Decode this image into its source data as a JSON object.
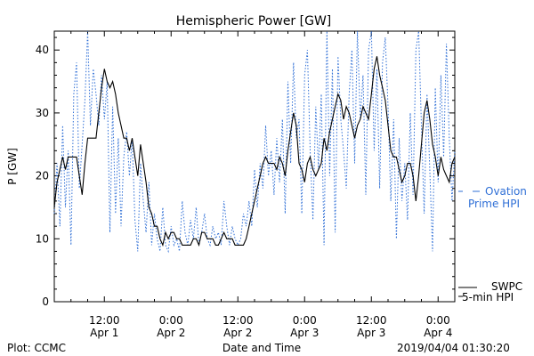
{
  "chart_data": {
    "type": "line",
    "title": "Hemispheric Power [GW]",
    "xlabel": "Date and Time",
    "ylabel": "P [GW]",
    "ylim": [
      0,
      43
    ],
    "yticks": [
      0,
      10,
      20,
      30,
      40
    ],
    "xticks": [
      {
        "time": "12:00",
        "date": "Apr 1",
        "hour": 12
      },
      {
        "time": "0:00",
        "date": "Apr 2",
        "hour": 24
      },
      {
        "time": "12:00",
        "date": "Apr 2",
        "hour": 36
      },
      {
        "time": "0:00",
        "date": "Apr 3",
        "hour": 48
      },
      {
        "time": "12:00",
        "date": "Apr 3",
        "hour": 60
      },
      {
        "time": "0:00",
        "date": "Apr 4",
        "hour": 72
      }
    ],
    "xlim_hours": [
      3,
      75
    ],
    "footer_left": "Plot: CCMC",
    "footer_right": "2019/04/04 01:30:20",
    "series": [
      {
        "name_lines": [
          "SWPC",
          "5-min HPI"
        ],
        "color": "#000000",
        "style": "solid",
        "points": [
          [
            3.0,
            15
          ],
          [
            3.5,
            19
          ],
          [
            4.0,
            21
          ],
          [
            4.5,
            23
          ],
          [
            5.0,
            21
          ],
          [
            5.5,
            23
          ],
          [
            6.0,
            23
          ],
          [
            6.5,
            23
          ],
          [
            7.0,
            23
          ],
          [
            7.5,
            20
          ],
          [
            8.0,
            17
          ],
          [
            8.5,
            22
          ],
          [
            9.0,
            26
          ],
          [
            9.5,
            26
          ],
          [
            10.0,
            26
          ],
          [
            10.5,
            26
          ],
          [
            11.0,
            30
          ],
          [
            11.5,
            34
          ],
          [
            12.0,
            37
          ],
          [
            12.5,
            35
          ],
          [
            13.0,
            34
          ],
          [
            13.5,
            35
          ],
          [
            14.0,
            33
          ],
          [
            14.5,
            30
          ],
          [
            15.0,
            28
          ],
          [
            15.5,
            26
          ],
          [
            16.0,
            26
          ],
          [
            16.5,
            24
          ],
          [
            17.0,
            26
          ],
          [
            17.5,
            23
          ],
          [
            18.0,
            20
          ],
          [
            18.5,
            25
          ],
          [
            19.0,
            22
          ],
          [
            19.5,
            19
          ],
          [
            20.0,
            15
          ],
          [
            20.5,
            14
          ],
          [
            21.0,
            12
          ],
          [
            21.5,
            12
          ],
          [
            22.0,
            10
          ],
          [
            22.5,
            9
          ],
          [
            23.0,
            11
          ],
          [
            23.5,
            10
          ],
          [
            24.0,
            11
          ],
          [
            24.5,
            11
          ],
          [
            25.0,
            10
          ],
          [
            25.5,
            10
          ],
          [
            26.0,
            9
          ],
          [
            26.5,
            9
          ],
          [
            27.0,
            9
          ],
          [
            27.5,
            9
          ],
          [
            28.0,
            10
          ],
          [
            28.5,
            10
          ],
          [
            29.0,
            9
          ],
          [
            29.5,
            11
          ],
          [
            30.0,
            11
          ],
          [
            30.5,
            10
          ],
          [
            31.0,
            10
          ],
          [
            31.5,
            10
          ],
          [
            32.0,
            9
          ],
          [
            32.5,
            9
          ],
          [
            33.0,
            10
          ],
          [
            33.5,
            11
          ],
          [
            34.0,
            10
          ],
          [
            34.5,
            10
          ],
          [
            35.0,
            10
          ],
          [
            35.5,
            9
          ],
          [
            36.0,
            9
          ],
          [
            36.5,
            9
          ],
          [
            37.0,
            9
          ],
          [
            37.5,
            10
          ],
          [
            38.0,
            12
          ],
          [
            38.5,
            14
          ],
          [
            39.0,
            16
          ],
          [
            39.5,
            18
          ],
          [
            40.0,
            20
          ],
          [
            40.5,
            22
          ],
          [
            41.0,
            23
          ],
          [
            41.5,
            22
          ],
          [
            42.0,
            22
          ],
          [
            42.5,
            22
          ],
          [
            43.0,
            21
          ],
          [
            43.5,
            23
          ],
          [
            44.0,
            22
          ],
          [
            44.5,
            20
          ],
          [
            45.0,
            24
          ],
          [
            45.5,
            27
          ],
          [
            46.0,
            30
          ],
          [
            46.5,
            28
          ],
          [
            47.0,
            22
          ],
          [
            47.5,
            21
          ],
          [
            48.0,
            19
          ],
          [
            48.5,
            22
          ],
          [
            49.0,
            23
          ],
          [
            49.5,
            21
          ],
          [
            50.0,
            20
          ],
          [
            50.5,
            21
          ],
          [
            51.0,
            22
          ],
          [
            51.5,
            26
          ],
          [
            52.0,
            24
          ],
          [
            52.5,
            27
          ],
          [
            53.0,
            29
          ],
          [
            53.5,
            31
          ],
          [
            54.0,
            33
          ],
          [
            54.5,
            32
          ],
          [
            55.0,
            29
          ],
          [
            55.5,
            31
          ],
          [
            56.0,
            30
          ],
          [
            56.5,
            28
          ],
          [
            57.0,
            26
          ],
          [
            57.5,
            28
          ],
          [
            58.0,
            29
          ],
          [
            58.5,
            31
          ],
          [
            59.0,
            30
          ],
          [
            59.5,
            29
          ],
          [
            60.0,
            33
          ],
          [
            60.5,
            37
          ],
          [
            61.0,
            39
          ],
          [
            61.5,
            36
          ],
          [
            62.0,
            34
          ],
          [
            62.5,
            32
          ],
          [
            63.0,
            28
          ],
          [
            63.5,
            24
          ],
          [
            64.0,
            23
          ],
          [
            64.5,
            23
          ],
          [
            65.0,
            21
          ],
          [
            65.5,
            19
          ],
          [
            66.0,
            20
          ],
          [
            66.5,
            22
          ],
          [
            67.0,
            22
          ],
          [
            67.5,
            20
          ],
          [
            68.0,
            16
          ],
          [
            68.5,
            20
          ],
          [
            69.0,
            25
          ],
          [
            69.5,
            30
          ],
          [
            70.0,
            32
          ],
          [
            70.5,
            29
          ],
          [
            71.0,
            25
          ],
          [
            71.5,
            23
          ],
          [
            72.0,
            20
          ],
          [
            72.5,
            23
          ],
          [
            73.0,
            21
          ],
          [
            73.5,
            20
          ],
          [
            74.0,
            19
          ],
          [
            74.5,
            22
          ],
          [
            75.0,
            23
          ]
        ]
      },
      {
        "name_lines": [
          "Ovation",
          "Prime HPI"
        ],
        "color": "#2f6fd6",
        "style": "dotted",
        "points": [
          [
            3.0,
            14
          ],
          [
            3.5,
            22
          ],
          [
            4.0,
            12
          ],
          [
            4.5,
            28
          ],
          [
            5.0,
            15
          ],
          [
            5.5,
            24
          ],
          [
            6.0,
            9
          ],
          [
            6.5,
            33
          ],
          [
            7.0,
            38
          ],
          [
            7.5,
            18
          ],
          [
            8.0,
            25
          ],
          [
            8.5,
            32
          ],
          [
            9.0,
            43
          ],
          [
            9.5,
            28
          ],
          [
            10.0,
            37
          ],
          [
            10.5,
            33
          ],
          [
            11.0,
            28
          ],
          [
            11.5,
            36
          ],
          [
            12.0,
            29
          ],
          [
            12.5,
            35
          ],
          [
            13.0,
            11
          ],
          [
            13.5,
            31
          ],
          [
            14.0,
            14
          ],
          [
            14.5,
            26
          ],
          [
            15.0,
            12
          ],
          [
            15.5,
            23
          ],
          [
            16.0,
            27
          ],
          [
            16.5,
            20
          ],
          [
            17.0,
            26
          ],
          [
            17.5,
            13
          ],
          [
            18.0,
            8
          ],
          [
            18.5,
            22
          ],
          [
            19.0,
            16
          ],
          [
            19.5,
            11
          ],
          [
            20.0,
            19
          ],
          [
            20.5,
            9
          ],
          [
            21.0,
            14
          ],
          [
            21.5,
            10
          ],
          [
            22.0,
            8
          ],
          [
            22.5,
            15
          ],
          [
            23.0,
            9
          ],
          [
            23.5,
            8
          ],
          [
            24.0,
            12
          ],
          [
            24.5,
            9
          ],
          [
            25.0,
            10
          ],
          [
            25.5,
            8
          ],
          [
            26.0,
            16
          ],
          [
            26.5,
            11
          ],
          [
            27.0,
            9
          ],
          [
            27.5,
            13
          ],
          [
            28.0,
            10
          ],
          [
            28.5,
            15
          ],
          [
            29.0,
            9
          ],
          [
            29.5,
            11
          ],
          [
            30.0,
            14
          ],
          [
            30.5,
            10
          ],
          [
            31.0,
            9
          ],
          [
            31.5,
            12
          ],
          [
            32.0,
            10
          ],
          [
            32.5,
            11
          ],
          [
            33.0,
            9
          ],
          [
            33.5,
            16
          ],
          [
            34.0,
            12
          ],
          [
            34.5,
            9
          ],
          [
            35.0,
            12
          ],
          [
            35.5,
            10
          ],
          [
            36.0,
            9
          ],
          [
            36.5,
            10
          ],
          [
            37.0,
            14
          ],
          [
            37.5,
            12
          ],
          [
            38.0,
            16
          ],
          [
            38.5,
            12
          ],
          [
            39.0,
            21
          ],
          [
            39.5,
            15
          ],
          [
            40.0,
            22
          ],
          [
            40.5,
            18
          ],
          [
            41.0,
            28
          ],
          [
            41.5,
            20
          ],
          [
            42.0,
            24
          ],
          [
            42.5,
            17
          ],
          [
            43.0,
            26
          ],
          [
            43.5,
            19
          ],
          [
            44.0,
            29
          ],
          [
            44.5,
            14
          ],
          [
            45.0,
            35
          ],
          [
            45.5,
            22
          ],
          [
            46.0,
            38
          ],
          [
            46.5,
            26
          ],
          [
            47.0,
            29
          ],
          [
            47.5,
            14
          ],
          [
            48.0,
            36
          ],
          [
            48.5,
            40
          ],
          [
            49.0,
            24
          ],
          [
            49.5,
            13
          ],
          [
            50.0,
            31
          ],
          [
            50.5,
            21
          ],
          [
            51.0,
            33
          ],
          [
            51.5,
            9
          ],
          [
            52.0,
            43
          ],
          [
            52.5,
            20
          ],
          [
            53.0,
            37
          ],
          [
            53.5,
            11
          ],
          [
            54.0,
            39
          ],
          [
            54.5,
            29
          ],
          [
            55.0,
            24
          ],
          [
            55.5,
            18
          ],
          [
            56.0,
            33
          ],
          [
            56.5,
            40
          ],
          [
            57.0,
            22
          ],
          [
            57.5,
            43
          ],
          [
            58.0,
            29
          ],
          [
            58.5,
            36
          ],
          [
            59.0,
            17
          ],
          [
            59.5,
            40
          ],
          [
            60.0,
            43
          ],
          [
            60.5,
            24
          ],
          [
            61.0,
            37
          ],
          [
            61.5,
            18
          ],
          [
            62.0,
            38
          ],
          [
            62.5,
            42
          ],
          [
            63.0,
            31
          ],
          [
            63.5,
            16
          ],
          [
            64.0,
            29
          ],
          [
            64.5,
            10
          ],
          [
            65.0,
            26
          ],
          [
            65.5,
            16
          ],
          [
            66.0,
            22
          ],
          [
            66.5,
            13
          ],
          [
            67.0,
            30
          ],
          [
            67.5,
            17
          ],
          [
            68.0,
            40
          ],
          [
            68.5,
            43
          ],
          [
            69.0,
            28
          ],
          [
            69.5,
            14
          ],
          [
            70.0,
            33
          ],
          [
            70.5,
            21
          ],
          [
            71.0,
            8
          ],
          [
            71.5,
            34
          ],
          [
            72.0,
            19
          ],
          [
            72.5,
            36
          ],
          [
            73.0,
            23
          ],
          [
            73.5,
            41
          ],
          [
            74.0,
            26
          ],
          [
            74.5,
            16
          ],
          [
            75.0,
            24
          ]
        ]
      }
    ]
  }
}
